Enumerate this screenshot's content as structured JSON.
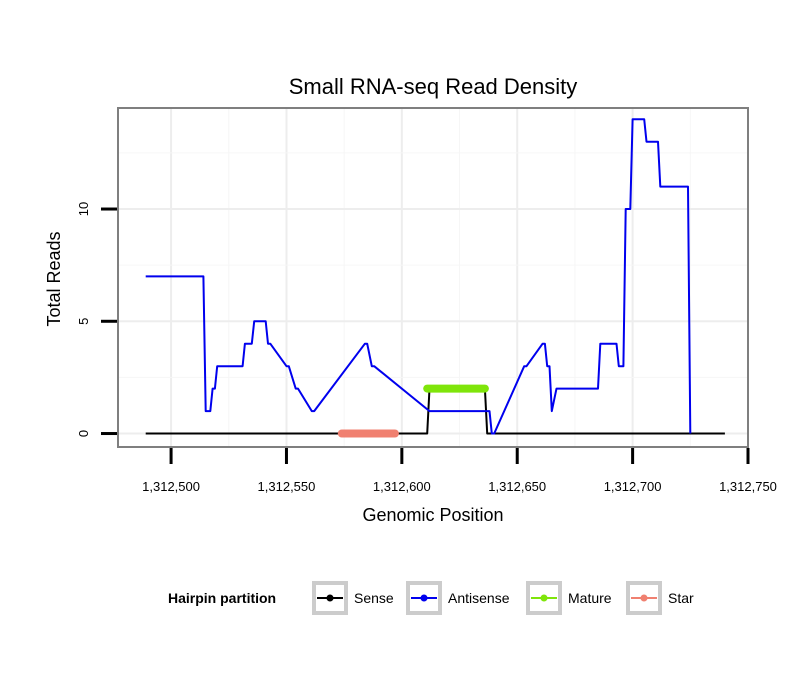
{
  "chart_data": {
    "type": "line",
    "title": "Small RNA-seq Read Density",
    "xlabel": "Genomic Position",
    "ylabel": "Total Reads",
    "xlim": [
      1312477,
      1312750
    ],
    "ylim": [
      -0.6,
      14.5
    ],
    "x_ticks": [
      1312500,
      1312550,
      1312600,
      1312650,
      1312700,
      1312750
    ],
    "x_tick_labels": [
      "1,312,500",
      "1,312,550",
      "1,312,600",
      "1,312,650",
      "1,312,700",
      "1,312,750"
    ],
    "y_ticks": [
      0,
      5,
      10
    ],
    "y_tick_labels": [
      "0",
      "5",
      "10"
    ],
    "grid": true,
    "legend": {
      "title": "Hairpin partition",
      "position": "bottom",
      "entries": [
        {
          "name": "Sense",
          "color": "#000000"
        },
        {
          "name": "Antisense",
          "color": "#0000ee"
        },
        {
          "name": "Mature",
          "color": "#7fe50a"
        },
        {
          "name": "Star",
          "color": "#f08070"
        }
      ]
    },
    "series": [
      {
        "name": "Sense",
        "color": "#000000",
        "x": [
          1312489,
          1312597,
          1312611,
          1312612,
          1312636,
          1312637,
          1312740
        ],
        "y": [
          0,
          0,
          0,
          2,
          2,
          0,
          0
        ]
      },
      {
        "name": "Antisense",
        "color": "#0000ee",
        "x": [
          1312489,
          1312514,
          1312515,
          1312517,
          1312518,
          1312519,
          1312520,
          1312531,
          1312532,
          1312535,
          1312536,
          1312541,
          1312542,
          1312543,
          1312550,
          1312551,
          1312554,
          1312555,
          1312561,
          1312562,
          1312584,
          1312585,
          1312587,
          1312588,
          1312612,
          1312613,
          1312637,
          1312638,
          1312639,
          1312640,
          1312653,
          1312654,
          1312661,
          1312662,
          1312663,
          1312664,
          1312665,
          1312667,
          1312685,
          1312686,
          1312693,
          1312694,
          1312696,
          1312697,
          1312699,
          1312700,
          1312705,
          1312706,
          1312711,
          1312712,
          1312724,
          1312725
        ],
        "y": [
          7,
          7,
          1,
          1,
          2,
          2,
          3,
          3,
          4,
          4,
          5,
          5,
          4,
          4,
          3,
          3,
          2,
          2,
          1,
          1,
          4,
          4,
          3,
          3,
          1,
          1,
          1,
          1,
          0,
          0,
          3,
          3,
          4,
          4,
          3,
          3,
          1,
          2,
          2,
          4,
          4,
          3,
          3,
          10,
          10,
          14,
          14,
          13,
          13,
          11,
          11,
          0
        ]
      },
      {
        "name": "Mature",
        "color": "#7fe50a",
        "x": [
          1312611,
          1312636
        ],
        "y": [
          2,
          2
        ]
      },
      {
        "name": "Star",
        "color": "#f08070",
        "x": [
          1312574,
          1312597
        ],
        "y": [
          0,
          0
        ]
      }
    ]
  }
}
